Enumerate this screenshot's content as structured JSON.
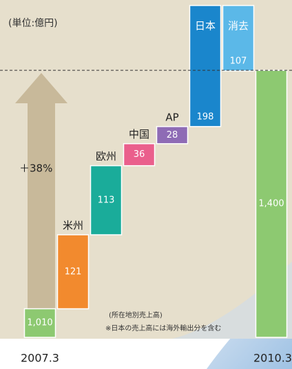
{
  "chart_data": {
    "type": "waterfall",
    "title": "(単位:億円)",
    "annotation": "＋38%",
    "notes": [
      "(所在地別売上高)",
      "※日本の売上高には海外輸出分を含む"
    ],
    "categories": [
      "2007.3",
      "米州",
      "欧州",
      "中国",
      "AP",
      "日本",
      "消去",
      "2010.3"
    ],
    "measure": [
      "absolute",
      "relative",
      "relative",
      "relative",
      "relative",
      "relative",
      "relative",
      "total"
    ],
    "values": [
      1010,
      121,
      113,
      36,
      28,
      198,
      -107,
      1400
    ],
    "value_labels": [
      "1,010",
      "121",
      "113",
      "36",
      "28",
      "198",
      "107",
      "1,400"
    ],
    "colors": [
      "#8dc971",
      "#f28a2e",
      "#1aac9a",
      "#ea5f8c",
      "#8e6bb5",
      "#1a86cc",
      "#5bb8e8",
      "#8dc971"
    ],
    "ylim": [
      961,
      1515
    ]
  }
}
